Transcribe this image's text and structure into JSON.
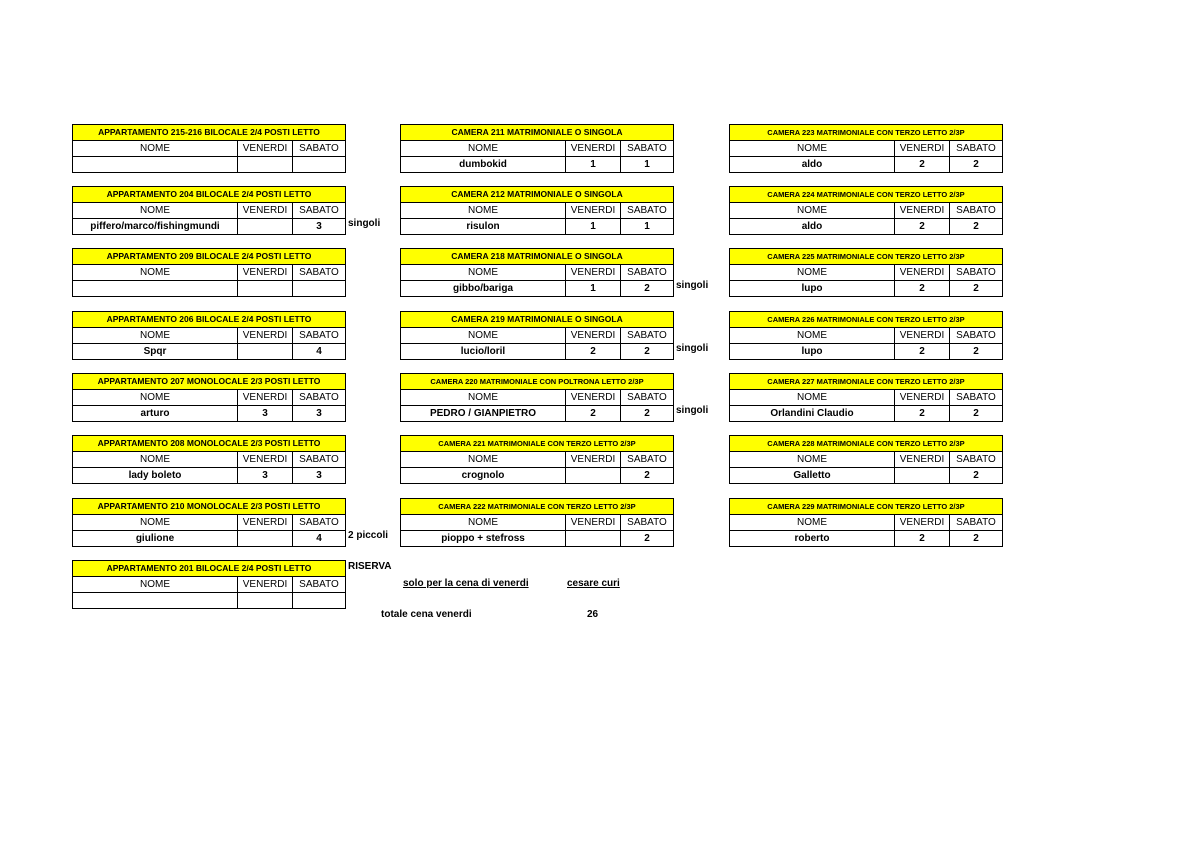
{
  "headers": {
    "nome": "NOME",
    "venerdi": "VENERDI",
    "sabato": "SABATO"
  },
  "columns": [
    [
      {
        "title": "APPARTAMENTO 215-216 BILOCALE 2/4 POSTI LETTO",
        "nome": "",
        "venerdi": "",
        "sabato": "",
        "note": ""
      },
      {
        "title": "APPARTAMENTO 204 BILOCALE 2/4 POSTI LETTO",
        "nome": "piffero/marco/fishingmundi",
        "venerdi": "",
        "sabato": "3",
        "note": "singoli"
      },
      {
        "title": "APPARTAMENTO 209 BILOCALE 2/4 POSTI LETTO",
        "nome": "",
        "venerdi": "",
        "sabato": "",
        "note": ""
      },
      {
        "title": "APPARTAMENTO 206 BILOCALE 2/4 POSTI LETTO",
        "nome": "Spqr",
        "venerdi": "",
        "sabato": "4",
        "note": ""
      },
      {
        "title": "APPARTAMENTO 207 MONOLOCALE 2/3 POSTI LETTO",
        "nome": "arturo",
        "venerdi": "3",
        "sabato": "3",
        "note": ""
      },
      {
        "title": "APPARTAMENTO 208 MONOLOCALE 2/3 POSTI LETTO",
        "nome": "lady boleto",
        "venerdi": "3",
        "sabato": "3",
        "note": ""
      },
      {
        "title": "APPARTAMENTO 210 MONOLOCALE 2/3 POSTI LETTO",
        "nome": "giulione",
        "venerdi": "",
        "sabato": "4",
        "note": "2 piccoli"
      },
      {
        "title": "APPARTAMENTO 201 BILOCALE 2/4 POSTI LETTO",
        "nome": "",
        "venerdi": "",
        "sabato": "",
        "note": "RISERVA",
        "note_top": true
      }
    ],
    [
      {
        "title": "CAMERA 211 MATRIMONIALE O SINGOLA",
        "nome": "dumbokid",
        "venerdi": "1",
        "sabato": "1",
        "note": ""
      },
      {
        "title": "CAMERA 212 MATRIMONIALE O SINGOLA",
        "nome": "risulon",
        "venerdi": "1",
        "sabato": "1",
        "note": ""
      },
      {
        "title": "CAMERA 218 MATRIMONIALE O SINGOLA",
        "nome": "gibbo/bariga",
        "venerdi": "1",
        "sabato": "2",
        "note": "singoli"
      },
      {
        "title": "CAMERA 219 MATRIMONIALE O SINGOLA",
        "nome": "lucio/loril",
        "venerdi": "2",
        "sabato": "2",
        "note": "singoli"
      },
      {
        "title": "CAMERA 220 MATRIMONIALE CON POLTRONA LETTO 2/3P",
        "nome": "PEDRO / GIANPIETRO",
        "venerdi": "2",
        "sabato": "2",
        "note": "singoli",
        "small": true
      },
      {
        "title": "CAMERA 221 MATRIMONIALE CON TERZO LETTO 2/3P",
        "nome": "crognolo",
        "venerdi": "",
        "sabato": "2",
        "note": "",
        "small": true
      },
      {
        "title": "CAMERA 222 MATRIMONIALE CON TERZO LETTO 2/3P",
        "nome": "pioppo + stefross",
        "venerdi": "",
        "sabato": "2",
        "note": "",
        "small": true
      }
    ],
    [
      {
        "title": "CAMERA 223 MATRIMONIALE CON TERZO LETTO 2/3P",
        "nome": "aldo",
        "venerdi": "2",
        "sabato": "2",
        "note": "",
        "small": true
      },
      {
        "title": "CAMERA 224 MATRIMONIALE CON TERZO LETTO 2/3P",
        "nome": "aldo",
        "venerdi": "2",
        "sabato": "2",
        "note": "",
        "small": true
      },
      {
        "title": "CAMERA 225 MATRIMONIALE CON TERZO LETTO 2/3P",
        "nome": "lupo",
        "venerdi": "2",
        "sabato": "2",
        "note": "",
        "small": true
      },
      {
        "title": "CAMERA 226 MATRIMONIALE CON TERZO LETTO 2/3P",
        "nome": "lupo",
        "venerdi": "2",
        "sabato": "2",
        "note": "",
        "small": true
      },
      {
        "title": "CAMERA 227 MATRIMONIALE CON TERZO LETTO 2/3P",
        "nome": "Orlandini Claudio",
        "venerdi": "2",
        "sabato": "2",
        "note": "",
        "small": true
      },
      {
        "title": "CAMERA 228 MATRIMONIALE CON TERZO LETTO 2/3P",
        "nome": "Galletto",
        "venerdi": "",
        "sabato": "2",
        "note": "",
        "small": true
      },
      {
        "title": "CAMERA 229 MATRIMONIALE CON TERZO LETTO 2/3P",
        "nome": "roberto",
        "venerdi": "2",
        "sabato": "2",
        "note": "",
        "small": true
      }
    ]
  ],
  "extra": {
    "solo_label": "solo per la cena di venerdi",
    "solo_name": "cesare curi",
    "totale_label": "totale cena venerdi",
    "totale_value": "26"
  },
  "colors": {
    "header_fill": "#ffff00"
  }
}
